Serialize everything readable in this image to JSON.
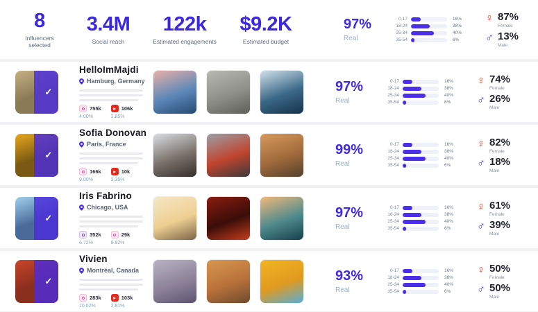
{
  "icons": {
    "female": "♀",
    "male": "♂",
    "check": "✓"
  },
  "labels": {
    "real": "Real",
    "female": "Female",
    "male": "Male"
  },
  "colors": {
    "accent_purple": "#3b27e0",
    "bar_purple": "#4b2fe8",
    "female_red": "#e8462d"
  },
  "summary": {
    "stats": [
      {
        "value": "8",
        "label": "Influencers selected"
      },
      {
        "value": "3.4M",
        "label": "Social reach"
      },
      {
        "value": "122k",
        "label": "Estimated engagements"
      },
      {
        "value": "$9.2K",
        "label": "Estimated budget"
      }
    ],
    "real": "97%",
    "age": [
      {
        "label": "0-17",
        "pct": "16%",
        "bar": 26
      },
      {
        "label": "18-24",
        "pct": "38%",
        "bar": 52
      },
      {
        "label": "25-34",
        "pct": "40%",
        "bar": 64
      },
      {
        "label": "35-54",
        "pct": "6%",
        "bar": 10
      }
    ],
    "gender": {
      "female": "87%",
      "male": "13%"
    }
  },
  "influencers": [
    {
      "name": "HelloImMajdi",
      "location": "Hamburg, Germany",
      "profile_colors": [
        "#c4b083",
        "#8a7a55"
      ],
      "accounts": [
        {
          "platform": "instagram",
          "followers": "755k",
          "engagement": "4.00%"
        },
        {
          "platform": "youtube",
          "followers": "106k",
          "engagement": "2.85%"
        }
      ],
      "photos": [
        {
          "colors": [
            "#e9b0a8",
            "#5b87b8",
            "#274a72"
          ]
        },
        {
          "colors": [
            "#b9b9b4",
            "#8f8f89",
            "#5f5f5a"
          ]
        },
        {
          "colors": [
            "#cfe0ea",
            "#3b6887",
            "#16324a"
          ]
        }
      ],
      "real": "97%",
      "age": [
        {
          "label": "0-17",
          "pct": "16%",
          "bar": 26
        },
        {
          "label": "18-24",
          "pct": "38%",
          "bar": 52
        },
        {
          "label": "25-34",
          "pct": "40%",
          "bar": 64
        },
        {
          "label": "35-54",
          "pct": "6%",
          "bar": 10
        }
      ],
      "gender": {
        "female": "74%",
        "male": "26%"
      }
    },
    {
      "name": "Sofia Donovan",
      "location": "Paris, France",
      "profile_colors": [
        "#e8a81f",
        "#7a5a12"
      ],
      "accounts": [
        {
          "platform": "instagram",
          "followers": "166k",
          "engagement": "9.00%"
        },
        {
          "platform": "youtube",
          "followers": "10k",
          "engagement": "2.35%"
        }
      ],
      "photos": [
        {
          "colors": [
            "#d8dde2",
            "#7a7169",
            "#352f2b"
          ]
        },
        {
          "colors": [
            "#9aa0a6",
            "#c0442e",
            "#3a3a3c"
          ]
        },
        {
          "colors": [
            "#d99a5b",
            "#a06a3c",
            "#55402c"
          ]
        }
      ],
      "real": "99%",
      "age": [
        {
          "label": "0-17",
          "pct": "16%",
          "bar": 26
        },
        {
          "label": "18-24",
          "pct": "38%",
          "bar": 52
        },
        {
          "label": "25-34",
          "pct": "40%",
          "bar": 64
        },
        {
          "label": "35-54",
          "pct": "6%",
          "bar": 10
        }
      ],
      "gender": {
        "female": "82%",
        "male": "18%"
      }
    },
    {
      "name": "Iris Fabrino",
      "location": "Chicago, USA",
      "profile_colors": [
        "#9fd0ea",
        "#4a6a9a"
      ],
      "accounts": [
        {
          "platform": "twitch",
          "followers": "352k",
          "engagement": "6.72%"
        },
        {
          "platform": "instagram",
          "followers": "29k",
          "engagement": "8.92%"
        }
      ],
      "photos": [
        {
          "colors": [
            "#f6e7c5",
            "#eecf92",
            "#7a6648"
          ]
        },
        {
          "colors": [
            "#8a1c10",
            "#3a0d08",
            "#c43d1d"
          ]
        },
        {
          "colors": [
            "#f0b97a",
            "#4f8a8c",
            "#173f4c"
          ]
        }
      ],
      "real": "97%",
      "age": [
        {
          "label": "0-17",
          "pct": "16%",
          "bar": 26
        },
        {
          "label": "18-24",
          "pct": "38%",
          "bar": 52
        },
        {
          "label": "25-34",
          "pct": "40%",
          "bar": 64
        },
        {
          "label": "35-54",
          "pct": "6%",
          "bar": 10
        }
      ],
      "gender": {
        "female": "61%",
        "male": "39%"
      }
    },
    {
      "name": "Vivien",
      "location": "Montréal, Canada",
      "profile_colors": [
        "#c8452a",
        "#8a2e1e"
      ],
      "accounts": [
        {
          "platform": "instagram",
          "followers": "283k",
          "engagement": "10.02%"
        },
        {
          "platform": "youtube",
          "followers": "103k",
          "engagement": "2.81%"
        }
      ],
      "photos": [
        {
          "colors": [
            "#b9b3c4",
            "#8d8299",
            "#5c5470"
          ]
        },
        {
          "colors": [
            "#d9974f",
            "#b8713a",
            "#6e4a2e"
          ]
        },
        {
          "colors": [
            "#f2b424",
            "#e09a1f",
            "#58aed6"
          ]
        }
      ],
      "real": "93%",
      "age": [
        {
          "label": "0-17",
          "pct": "16%",
          "bar": 26
        },
        {
          "label": "18-24",
          "pct": "38%",
          "bar": 52
        },
        {
          "label": "25-34",
          "pct": "40%",
          "bar": 64
        },
        {
          "label": "35-54",
          "pct": "6%",
          "bar": 10
        }
      ],
      "gender": {
        "female": "50%",
        "male": "50%"
      }
    }
  ]
}
